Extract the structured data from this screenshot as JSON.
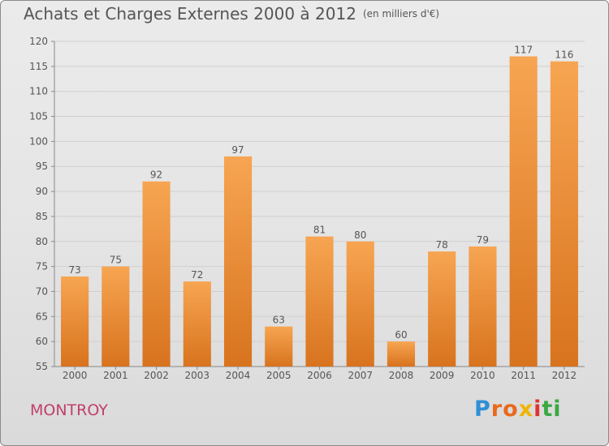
{
  "title": "Achats et Charges Externes 2000 à 2012",
  "title_unit": "(en milliers d'€)",
  "town": "MONTROY",
  "brand": "Proxiti",
  "colors": {
    "bar_light": "#f7a552",
    "bar_dark": "#d8731e",
    "grid": "#cfcfcf",
    "text": "#555555",
    "town": "#c0406a"
  },
  "chart_data": {
    "type": "bar",
    "categories": [
      "2000",
      "2001",
      "2002",
      "2003",
      "2004",
      "2005",
      "2006",
      "2007",
      "2008",
      "2009",
      "2010",
      "2011",
      "2012"
    ],
    "values": [
      73,
      75,
      92,
      72,
      97,
      63,
      81,
      80,
      60,
      78,
      79,
      117,
      116
    ],
    "ylim": [
      55,
      120
    ],
    "yticks": [
      55,
      60,
      65,
      70,
      75,
      80,
      85,
      90,
      95,
      100,
      105,
      110,
      115,
      120
    ],
    "grid": true,
    "data_labels": true
  }
}
